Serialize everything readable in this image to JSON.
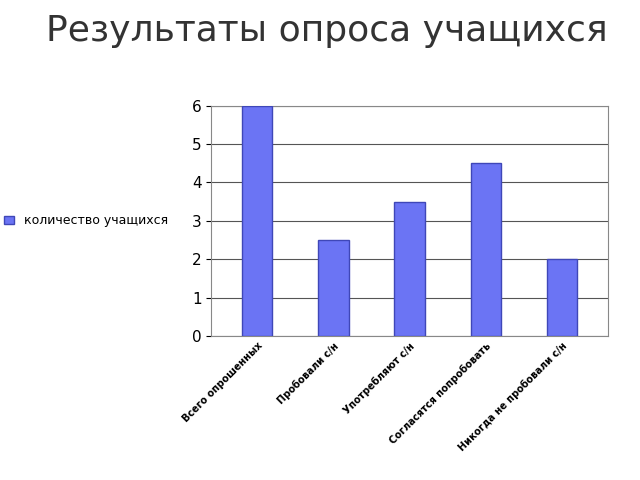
{
  "chart_data": {
    "type": "bar",
    "title": "Результаты опроса учащихся",
    "categories": [
      "Всего опрошенных",
      "Пробовали с/н",
      "Употребляют с/н",
      "Согласятся попробовать",
      "Никогда не пробовали с/н"
    ],
    "series": [
      {
        "name": "количество учащихся",
        "color": "#6b74f4",
        "values": [
          6,
          2.5,
          3.5,
          4.5,
          2
        ]
      }
    ],
    "ylim": [
      0,
      6
    ],
    "yticks": [
      0,
      1,
      2,
      3,
      4,
      5,
      6
    ],
    "grid": true,
    "legend": "left"
  }
}
